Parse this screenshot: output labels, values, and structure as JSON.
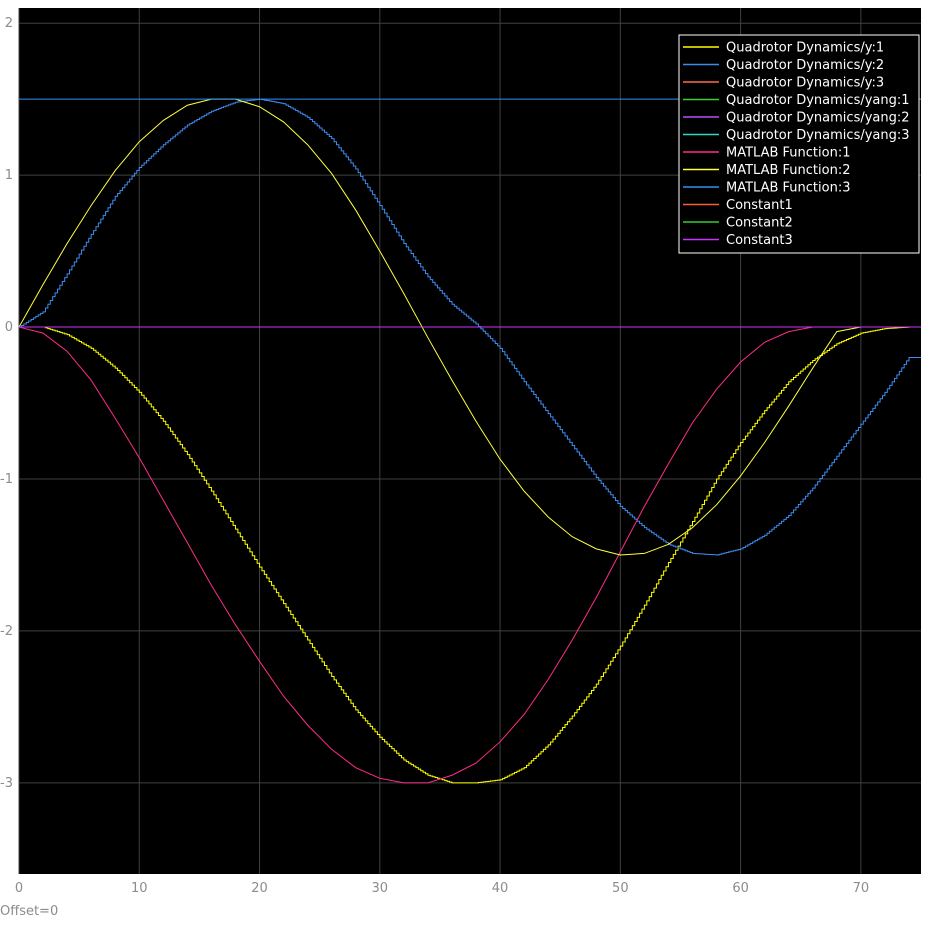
{
  "footer": {
    "offset_label": "Offset=0"
  },
  "chart_data": {
    "type": "line",
    "xlim": [
      0,
      75
    ],
    "ylim": [
      -3.6,
      2.1
    ],
    "xticks": [
      0,
      10,
      20,
      30,
      40,
      50,
      60,
      70
    ],
    "xtick_labels": [
      "0",
      "10",
      "20",
      "30",
      "40",
      "50",
      "60",
      "70"
    ],
    "yticks": [
      -3,
      -2,
      -1,
      0,
      1,
      2
    ],
    "ytick_labels": [
      "-3",
      "-2",
      "-1",
      "0",
      "1",
      "2"
    ],
    "grid": true,
    "background": "#000000",
    "grid_color": "#404040",
    "legend_position": "top-right",
    "legend": [
      {
        "label": "Quadrotor Dynamics/y:1",
        "color": "#ffff00"
      },
      {
        "label": "Quadrotor Dynamics/y:2",
        "color": "#3d8bf0"
      },
      {
        "label": "Quadrotor Dynamics/y:3",
        "color": "#ff6b4a"
      },
      {
        "label": "Quadrotor Dynamics/yang:1",
        "color": "#3ccc3c"
      },
      {
        "label": "Quadrotor Dynamics/yang:2",
        "color": "#b84dff"
      },
      {
        "label": "Quadrotor Dynamics/yang:3",
        "color": "#33d6c2"
      },
      {
        "label": "MATLAB Function:1",
        "color": "#ff2d87"
      },
      {
        "label": "MATLAB Function:2",
        "color": "#ffff40"
      },
      {
        "label": "MATLAB Function:3",
        "color": "#2f8ff5"
      },
      {
        "label": "Constant1",
        "color": "#ff5a3c"
      },
      {
        "label": "Constant2",
        "color": "#33cc33"
      },
      {
        "label": "Constant3",
        "color": "#cc33ff"
      }
    ],
    "series": [
      {
        "name": "Quadrotor Dynamics/y:1",
        "color": "#ffff00",
        "step": true,
        "x": [
          0,
          2,
          4,
          6,
          8,
          10,
          12,
          14,
          16,
          18,
          20,
          22,
          24,
          26,
          28,
          30,
          32,
          34,
          36,
          38,
          40,
          42,
          44,
          46,
          48,
          50,
          52,
          54,
          56,
          58,
          60,
          62,
          64,
          66,
          68,
          70,
          72,
          74,
          75
        ],
        "y": [
          0,
          0,
          -0.05,
          -0.14,
          -0.27,
          -0.43,
          -0.62,
          -0.84,
          -1.08,
          -1.33,
          -1.58,
          -1.82,
          -2.06,
          -2.3,
          -2.52,
          -2.7,
          -2.85,
          -2.95,
          -3.0,
          -3.0,
          -2.98,
          -2.9,
          -2.75,
          -2.56,
          -2.35,
          -2.1,
          -1.83,
          -1.55,
          -1.28,
          -1.0,
          -0.76,
          -0.55,
          -0.36,
          -0.22,
          -0.11,
          -0.04,
          -0.01,
          0,
          0
        ]
      },
      {
        "name": "Quadrotor Dynamics/y:2",
        "color": "#3d8bf0",
        "step": true,
        "x": [
          0,
          2,
          4,
          6,
          8,
          10,
          12,
          14,
          16,
          18,
          20,
          22,
          24,
          26,
          28,
          30,
          32,
          34,
          36,
          38,
          40,
          42,
          44,
          46,
          48,
          50,
          52,
          54,
          56,
          58,
          60,
          62,
          64,
          66,
          68,
          70,
          72,
          74,
          75
        ],
        "y": [
          0,
          0.1,
          0.35,
          0.61,
          0.86,
          1.05,
          1.2,
          1.33,
          1.42,
          1.48,
          1.5,
          1.47,
          1.38,
          1.24,
          1.04,
          0.8,
          0.55,
          0.33,
          0.15,
          0.02,
          -0.14,
          -0.36,
          -0.57,
          -0.78,
          -0.99,
          -1.18,
          -1.32,
          -1.43,
          -1.49,
          -1.5,
          -1.46,
          -1.37,
          -1.24,
          -1.06,
          -0.85,
          -0.64,
          -0.43,
          -0.2,
          -0.2
        ]
      },
      {
        "name": "Quadrotor Dynamics/y:3",
        "color": "#ff6b4a",
        "x": [
          0,
          75
        ],
        "y": [
          0,
          0
        ]
      },
      {
        "name": "Quadrotor Dynamics/yang:1",
        "color": "#3ccc3c",
        "x": [
          0,
          75
        ],
        "y": [
          0,
          0
        ]
      },
      {
        "name": "Quadrotor Dynamics/yang:2",
        "color": "#b84dff",
        "x": [
          0,
          75
        ],
        "y": [
          0,
          0
        ]
      },
      {
        "name": "Quadrotor Dynamics/yang:3",
        "color": "#33d6c2",
        "x": [
          0,
          75
        ],
        "y": [
          0,
          0
        ]
      },
      {
        "name": "MATLAB Function:1",
        "color": "#ff2d87",
        "x": [
          0,
          2,
          4,
          6,
          8,
          10,
          12,
          14,
          16,
          18,
          20,
          22,
          24,
          26,
          28,
          30,
          32,
          34,
          36,
          38,
          40,
          42,
          44,
          46,
          48,
          50,
          52,
          54,
          56,
          58,
          60,
          62,
          64,
          66,
          68,
          70,
          72,
          74,
          75
        ],
        "y": [
          0,
          -0.04,
          -0.16,
          -0.35,
          -0.6,
          -0.86,
          -1.14,
          -1.42,
          -1.7,
          -1.96,
          -2.2,
          -2.43,
          -2.62,
          -2.78,
          -2.9,
          -2.97,
          -3.0,
          -3.0,
          -2.95,
          -2.87,
          -2.73,
          -2.55,
          -2.32,
          -2.06,
          -1.78,
          -1.48,
          -1.18,
          -0.9,
          -0.63,
          -0.41,
          -0.23,
          -0.1,
          -0.03,
          0,
          0,
          0,
          0,
          0,
          0
        ]
      },
      {
        "name": "MATLAB Function:2",
        "color": "#ffff40",
        "x": [
          0,
          2,
          4,
          6,
          8,
          10,
          12,
          14,
          16,
          18,
          20,
          22,
          24,
          26,
          28,
          30,
          32,
          34,
          36,
          38,
          40,
          42,
          44,
          46,
          48,
          50,
          52,
          54,
          56,
          58,
          60,
          62,
          64,
          66,
          68,
          70,
          72,
          74,
          75
        ],
        "y": [
          0,
          0.28,
          0.55,
          0.8,
          1.03,
          1.22,
          1.36,
          1.46,
          1.5,
          1.5,
          1.45,
          1.35,
          1.2,
          1.01,
          0.77,
          0.5,
          0.22,
          -0.07,
          -0.35,
          -0.62,
          -0.87,
          -1.08,
          -1.25,
          -1.38,
          -1.46,
          -1.5,
          -1.49,
          -1.43,
          -1.32,
          -1.17,
          -0.98,
          -0.76,
          -0.52,
          -0.27,
          -0.03,
          0,
          0,
          0,
          0
        ]
      },
      {
        "name": "MATLAB Function:3",
        "color": "#2f8ff5",
        "x": [
          0,
          75
        ],
        "y": [
          1.5,
          1.5
        ]
      },
      {
        "name": "Constant1",
        "color": "#ff5a3c",
        "x": [
          0,
          75
        ],
        "y": [
          0,
          0
        ]
      },
      {
        "name": "Constant2",
        "color": "#33cc33",
        "x": [
          0,
          75
        ],
        "y": [
          0,
          0
        ]
      },
      {
        "name": "Constant3",
        "color": "#cc33ff",
        "x": [
          0,
          75
        ],
        "y": [
          0,
          0
        ]
      }
    ]
  }
}
